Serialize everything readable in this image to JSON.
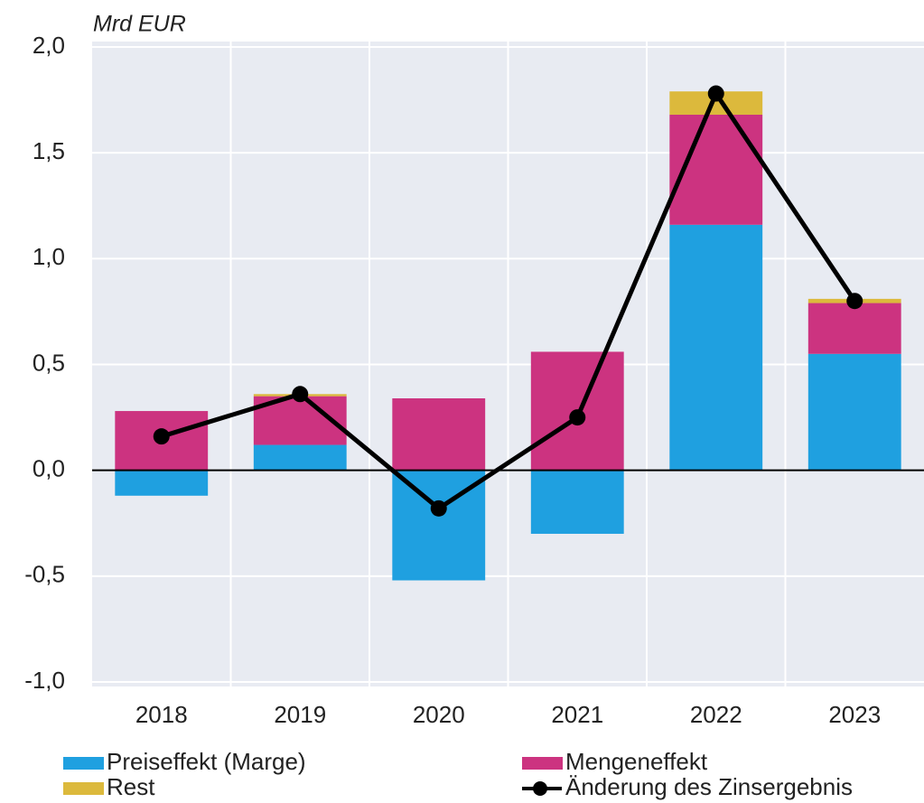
{
  "chart_data": {
    "type": "bar",
    "stacked": true,
    "unit_label": "Mrd EUR",
    "categories": [
      "2018",
      "2019",
      "2020",
      "2021",
      "2022",
      "2023"
    ],
    "series": [
      {
        "name": "Preiseffekt (Marge)",
        "color": "#1fa0e0",
        "values": [
          -0.12,
          0.12,
          -0.52,
          -0.3,
          1.16,
          0.55
        ]
      },
      {
        "name": "Mengeneffekt",
        "color": "#cc3380",
        "values": [
          0.28,
          0.23,
          0.34,
          0.56,
          0.52,
          0.24
        ]
      },
      {
        "name": "Rest",
        "color": "#dcb93c",
        "values": [
          0,
          0.01,
          0,
          0,
          0.11,
          0.02
        ]
      },
      {
        "name": "Änderung des Zinsergebnis",
        "type": "line",
        "color": "#000000",
        "values": [
          0.16,
          0.36,
          -0.18,
          0.25,
          1.78,
          0.8
        ]
      }
    ],
    "ylim": [
      -1,
      2
    ],
    "yticks": [
      {
        "value": -1,
        "label": "-1,0"
      },
      {
        "value": -0.5,
        "label": "-0,5"
      },
      {
        "value": 0,
        "label": "0,0"
      },
      {
        "value": 0.5,
        "label": "0,5"
      },
      {
        "value": 1,
        "label": "1,0"
      },
      {
        "value": 1.5,
        "label": "1,5"
      },
      {
        "value": 2,
        "label": "2,0"
      }
    ],
    "grid": true
  }
}
